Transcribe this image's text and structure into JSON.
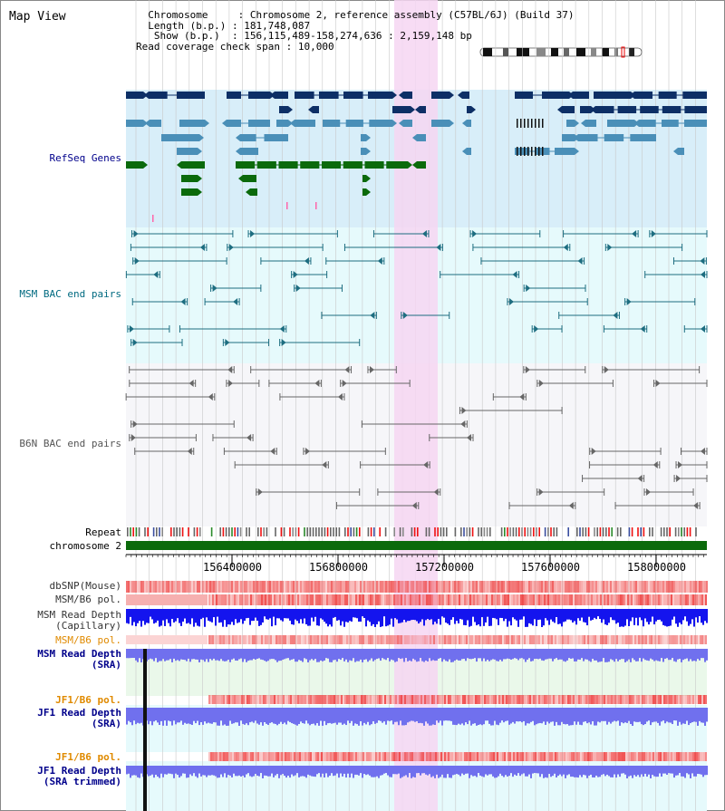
{
  "app": {
    "title": "Map View"
  },
  "info": {
    "chromosome_key": "  Chromosome     ",
    "chromosome_val": "Chromosome 2, reference assembly (C57BL/6J) (Build 37)",
    "length_key": "  Length (b.p.) ",
    "length_val": "181,748,087",
    "show_key": "   Show (b.p.)  ",
    "show_val": "156,115,489-158,274,636 : 2,159,148 bp",
    "coverage_key": "Read coverage check span ",
    "coverage_val": "10,000"
  },
  "tracks": {
    "refseq": {
      "label": "RefSeq Genes"
    },
    "msm_bac": {
      "label": "MSM BAC end pairs"
    },
    "b6n_bac": {
      "label": "B6N BAC end pairs"
    },
    "repeat": {
      "label": "Repeat"
    },
    "chromosome": {
      "label": "chromosome 2"
    },
    "dbsnp": {
      "label": "dbSNP(Mouse)"
    },
    "msm_b6_pol": {
      "label": "MSM/B6 pol."
    },
    "msm_depth_cap": {
      "label1": "MSM Read Depth",
      "label2": "(Capillary)"
    },
    "msm_b6_pol2": {
      "label": "MSM/B6 pol."
    },
    "msm_depth_sra": {
      "label1": "MSM Read Depth",
      "label2": "(SRA)"
    },
    "jf1_b6_pol": {
      "label": "JF1/B6 pol."
    },
    "jf1_depth_sra": {
      "label1": "JF1 Read Depth",
      "label2": "(SRA)"
    },
    "jf1_b6_pol2": {
      "label": "JF1/B6 pol."
    },
    "jf1_depth_trim": {
      "label1": "JF1 Read Depth",
      "label2": "(SRA trimmed)"
    }
  },
  "ruler": {
    "ticks": [
      "156400000",
      "156800000",
      "157200000",
      "157600000",
      "158000000"
    ]
  },
  "colors": {
    "refseq_bg": "#d8eef9",
    "msm_bg": "#e6fafc",
    "b6n_bg": "#f5f5f8",
    "highlight": "#f6d6f2",
    "gene_navy": "#0d2f66",
    "gene_steel": "#4a8fb8",
    "gene_green": "#0b6a0b",
    "bac_teal": "#1d6d80",
    "bac_gray": "#666666",
    "snp_red": "#ee4444",
    "depth_blue": "#1414ee",
    "depth_light": "#7070ee",
    "label_blue": "#00008b",
    "label_teal": "#006a80",
    "label_orange": "#e08a00"
  }
}
